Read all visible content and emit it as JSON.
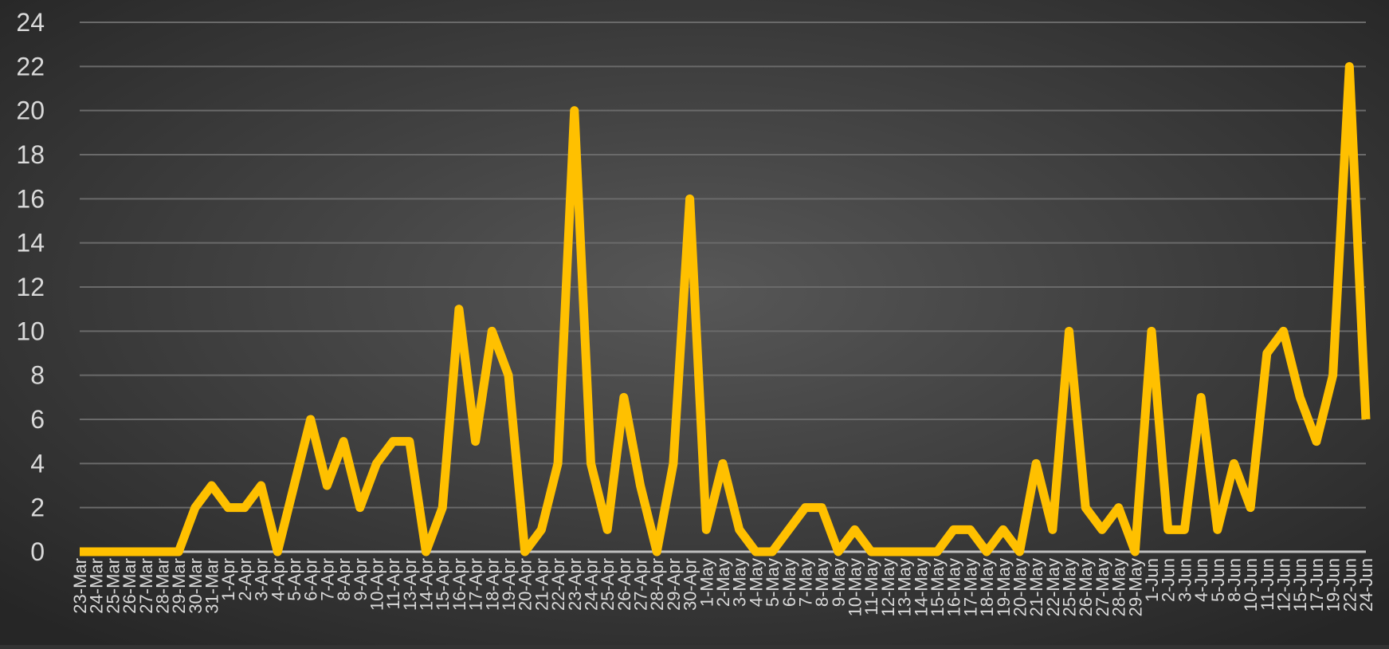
{
  "chart_data": {
    "type": "line",
    "categories": [
      "23-Mar",
      "24-Mar",
      "25-Mar",
      "26-Mar",
      "27-Mar",
      "28-Mar",
      "29-Mar",
      "30-Mar",
      "31-Mar",
      "1-Apr",
      "2-Apr",
      "3-Apr",
      "4-Apr",
      "5-Apr",
      "6-Apr",
      "7-Apr",
      "8-Apr",
      "9-Apr",
      "10-Apr",
      "11-Apr",
      "13-Apr",
      "14-Apr",
      "15-Apr",
      "16-Apr",
      "17-Apr",
      "18-Apr",
      "19-Apr",
      "20-Apr",
      "21-Apr",
      "22-Apr",
      "23-Apr",
      "24-Apr",
      "25-Apr",
      "26-Apr",
      "27-Apr",
      "28-Apr",
      "29-Apr",
      "30-Apr",
      "1-May",
      "2-May",
      "3-May",
      "4-May",
      "5-May",
      "6-May",
      "7-May",
      "8-May",
      "9-May",
      "10-May",
      "11-May",
      "12-May",
      "13-May",
      "14-May",
      "15-May",
      "16-May",
      "17-May",
      "18-May",
      "19-May",
      "20-May",
      "21-May",
      "22-May",
      "25-May",
      "26-May",
      "27-May",
      "28-May",
      "29-May",
      "1-Jun",
      "2-Jun",
      "3-Jun",
      "4-Jun",
      "5-Jun",
      "8-Jun",
      "10-Jun",
      "11-Jun",
      "12-Jun",
      "15-Jun",
      "17-Jun",
      "19-Jun",
      "22-Jun",
      "24-Jun"
    ],
    "values": [
      0,
      0,
      0,
      0,
      0,
      0,
      0,
      2,
      3,
      2,
      2,
      3,
      0,
      3,
      6,
      3,
      5,
      2,
      4,
      5,
      5,
      0,
      2,
      11,
      5,
      10,
      8,
      0,
      1,
      4,
      20,
      4,
      1,
      7,
      3,
      0,
      4,
      16,
      1,
      4,
      1,
      0,
      0,
      1,
      2,
      2,
      0,
      1,
      0,
      0,
      0,
      0,
      0,
      1,
      1,
      0,
      1,
      0,
      4,
      1,
      10,
      2,
      1,
      2,
      0,
      10,
      1,
      1,
      7,
      1,
      4,
      2,
      9,
      10,
      7,
      5,
      8,
      22,
      6
    ],
    "color": "#ffc000",
    "ylim": [
      0,
      24
    ],
    "yticks": [
      0,
      2,
      4,
      6,
      8,
      10,
      12,
      14,
      16,
      18,
      20,
      22,
      24
    ],
    "grid": true
  }
}
